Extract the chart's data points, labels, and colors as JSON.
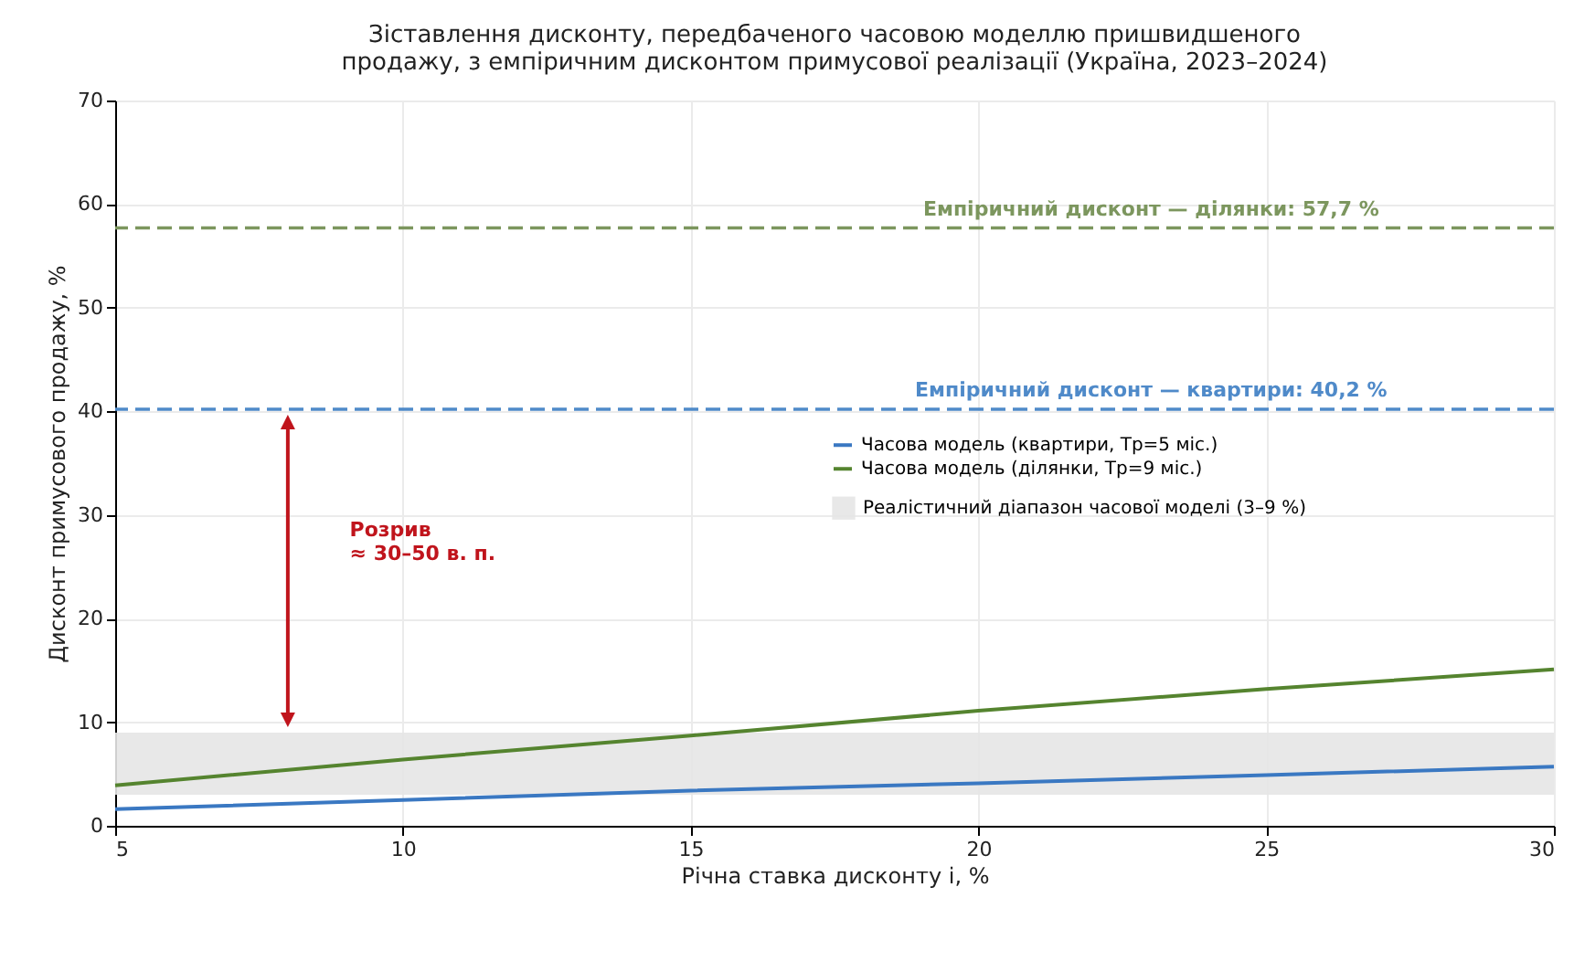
{
  "chart_data": {
    "type": "line",
    "title": "Зіставлення дисконту, передбаченого часовою моделлю пришвидшеного\nпродажу, з емпіричним дисконтом примусової реалізації (Україна, 2023–2024)",
    "xlabel": "Річна ставка дисконту і, %",
    "ylabel": "Дисконт примусового продажу, %",
    "x": [
      5,
      10,
      15,
      20,
      25,
      30
    ],
    "series": [
      {
        "name": "Часова модель (квартири, Tp=5 міс.)",
        "color": "#3a78c2",
        "values": [
          1.6,
          2.5,
          3.4,
          4.1,
          4.9,
          5.7
        ]
      },
      {
        "name": "Часова модель (ділянки, Tp=9 міс.)",
        "color": "#55842f",
        "values": [
          3.9,
          6.4,
          8.7,
          11.1,
          13.2,
          15.1
        ]
      }
    ],
    "ref_lines": [
      {
        "axis": "y",
        "value": 57.7,
        "label": "Емпіричний дисконт — ділянки: 57,7 %",
        "color": "#7c965e",
        "line_style": "dashed"
      },
      {
        "axis": "y",
        "value": 40.2,
        "label": "Емпіричний дисконт — квартири: 40,2 %",
        "color": "#4f8ac9",
        "line_style": "dashed"
      }
    ],
    "bands": [
      {
        "axis": "y",
        "from": 3,
        "to": 9,
        "label": "Реалістичний діапазон часової моделі (3–9 %)",
        "color": "#e6e6e6"
      }
    ],
    "annotations": [
      "Розрив\n≈ 30–50 в. п."
    ],
    "xlim": [
      5,
      30
    ],
    "xticks": [
      5,
      10,
      15,
      20,
      25,
      30
    ],
    "ylim": [
      0,
      70
    ],
    "yticks": [
      0,
      10,
      20,
      30,
      40,
      50,
      60,
      70
    ],
    "grid": true,
    "legend": "right",
    "line_style": "solid"
  }
}
